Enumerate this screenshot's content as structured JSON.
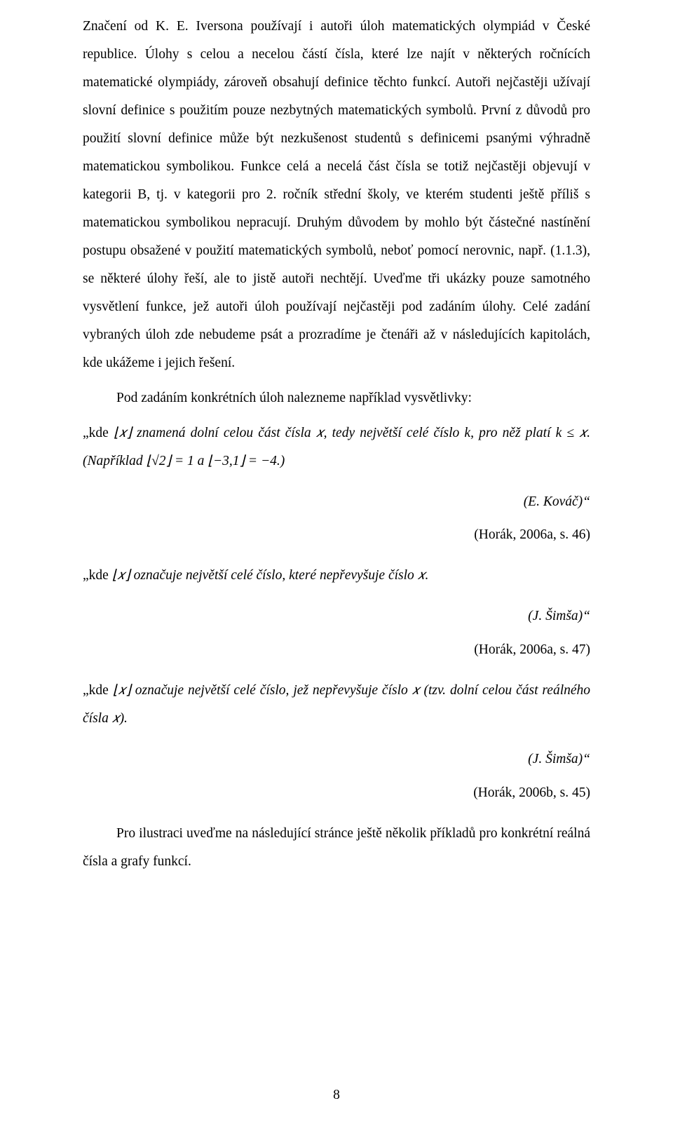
{
  "colors": {
    "text": "#000000",
    "background": "#ffffff"
  },
  "typography": {
    "family": "Times New Roman",
    "body_size_pt": 12,
    "line_height": 2.05
  },
  "p1_a": "Značení od K. E. Iversona používají i autoři úloh matematických olympiád v České republice. Úlohy s celou a necelou částí čísla, které lze najít v některých ročnících matematické olympiády, zároveň obsahují definice těchto funkcí. Autoři nejčastěji užívají slovní definice s použitím pouze nezbytných matematických symbolů. První z důvodů pro použití slovní definice může být nezkušenost studentů s definicemi psanými výhradně matematickou symbolikou. Funkce celá a necelá část čísla se totiž nejčastěji objevují v kategorii B, tj. v kategorii pro 2. ročník střední školy, ve kterém studenti ještě příliš s matematickou symbolikou nepracují. Druhým důvodem by mohlo být částečné nastínění postupu obsažené v použití matematických symbolů, neboť pomocí nerovnic, např. (1.1.3), se některé úlohy řeší, ale to jistě autoři nechtějí. Uveďme tři ukázky pouze samotného vysvětlení funkce, jež autoři úloh používají nejčastěji pod zadáním úlohy. Celé zadání vybraných úloh zde nebudeme psát a prozradíme je čtenáři až v následujících kapitolách, kde ukážeme i jejich řešení.",
  "p2": "Pod zadáním konkrétních úloh nalezneme například vysvětlivky:",
  "ex1_pre": "„kde ",
  "ex1_italic": " znamená dolní celou část čísla 𝑥, tedy největší celé číslo k, pro něž platí k ≤ 𝑥. (Například ",
  "ex1_frag2": " a ",
  "ex1_frag3": ".)",
  "ex1_author": "(E. Kováč)“",
  "ex1_cite": "(Horák, 2006a, s. 46)",
  "ex2_pre": "„kde ",
  "ex2_italic": " označuje největší celé číslo, které nepřevyšuje číslo 𝑥.",
  "ex2_author": "(J. Šimša)“",
  "ex2_cite": "(Horák, 2006a, s. 47)",
  "ex3_pre": "„kde ",
  "ex3_italic_a": " označuje největší celé číslo, jež nepřevyšuje číslo 𝑥 (tzv.",
  "ex3_italic_b": " dolní celou část reálného čísla 𝑥).",
  "ex3_author": "(J. Šimša)“",
  "ex3_cite": "(Horák, 2006b, s. 45)",
  "p_last": "Pro ilustraci uveďme na následující stránce ještě několik příkladů pro konkrétní reálná čísla a grafy funkcí.",
  "page_number": "8",
  "math": {
    "floor_x": "⌊𝑥⌋",
    "eq1": "⌊√2⌋ = 1",
    "eq2": "⌊−3,1⌋ = −4"
  }
}
